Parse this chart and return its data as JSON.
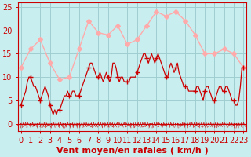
{
  "xlabel": "Vent moyen/en rafales ( km/h )",
  "bg_color": "#c8eef0",
  "grid_color": "#a0cdd0",
  "line_color_rafales": "#ffaaaa",
  "line_color_moyen": "#cc0000",
  "ylim": [
    0,
    26
  ],
  "xlim": [
    -0.3,
    23.3
  ],
  "yticks": [
    0,
    5,
    10,
    15,
    20,
    25
  ],
  "xticks": [
    0,
    1,
    2,
    3,
    4,
    5,
    6,
    7,
    8,
    9,
    10,
    11,
    12,
    13,
    14,
    15,
    16,
    17,
    18,
    19,
    20,
    21,
    22,
    23
  ],
  "font_color": "#cc0000",
  "font_size": 7,
  "rafales_x": [
    0,
    1,
    2,
    3,
    4,
    5,
    6,
    7,
    8,
    9,
    10,
    11,
    12,
    13,
    14,
    15,
    16,
    17,
    18,
    19,
    20,
    21,
    22,
    23
  ],
  "rafales_y": [
    12,
    16,
    18,
    13,
    9.5,
    10,
    16,
    22,
    19.5,
    19,
    21,
    17,
    18,
    21,
    24,
    23,
    24,
    22,
    19,
    15,
    15,
    16,
    15,
    12
  ],
  "moyen_x": [
    0,
    0.17,
    0.33,
    0.5,
    0.67,
    0.83,
    1,
    1.17,
    1.33,
    1.5,
    1.67,
    1.83,
    2,
    2.17,
    2.33,
    2.5,
    2.67,
    2.83,
    3,
    3.17,
    3.33,
    3.5,
    3.67,
    3.83,
    4,
    4.17,
    4.33,
    4.5,
    4.67,
    4.83,
    5,
    5.17,
    5.33,
    5.5,
    5.67,
    5.83,
    6,
    6.17,
    6.33,
    6.5,
    6.67,
    6.83,
    7,
    7.17,
    7.33,
    7.5,
    7.67,
    7.83,
    8,
    8.17,
    8.33,
    8.5,
    8.67,
    8.83,
    9,
    9.17,
    9.33,
    9.5,
    9.67,
    9.83,
    10,
    10.17,
    10.33,
    10.5,
    10.67,
    10.83,
    11,
    11.17,
    11.33,
    11.5,
    11.67,
    11.83,
    12,
    12.17,
    12.33,
    12.5,
    12.67,
    12.83,
    13,
    13.17,
    13.33,
    13.5,
    13.67,
    13.83,
    14,
    14.17,
    14.33,
    14.5,
    14.67,
    14.83,
    15,
    15.17,
    15.33,
    15.5,
    15.67,
    15.83,
    16,
    16.17,
    16.33,
    16.5,
    16.67,
    16.83,
    17,
    17.17,
    17.33,
    17.5,
    17.67,
    17.83,
    18,
    18.17,
    18.33,
    18.5,
    18.67,
    18.83,
    19,
    19.17,
    19.33,
    19.5,
    19.67,
    19.83,
    20,
    20.17,
    20.33,
    20.5,
    20.67,
    20.83,
    21,
    21.17,
    21.33,
    21.5,
    21.67,
    21.83,
    22,
    22.17,
    22.33,
    22.5,
    22.67,
    22.83,
    23
  ],
  "moyen_y": [
    4,
    5,
    6,
    7,
    9,
    10,
    10,
    9,
    8,
    8,
    7,
    6,
    5,
    6,
    7,
    8,
    7,
    6,
    4,
    3,
    2,
    3,
    2,
    3,
    3,
    4,
    5,
    6,
    6,
    7,
    6,
    6,
    7,
    7,
    6,
    6,
    6,
    7,
    8,
    9,
    10,
    11,
    12,
    13,
    13,
    12,
    11,
    10,
    10,
    11,
    10,
    9,
    10,
    11,
    10,
    9,
    10,
    13,
    13,
    12,
    10,
    9,
    10,
    10,
    9,
    9,
    9,
    9,
    10,
    10,
    10,
    10,
    11,
    12,
    13,
    14,
    15,
    15,
    14,
    13,
    14,
    15,
    14,
    13,
    14,
    15,
    14,
    13,
    12,
    11,
    10,
    10,
    12,
    13,
    12,
    11,
    12,
    13,
    11,
    10,
    9,
    8,
    8,
    8,
    7,
    7,
    7,
    7,
    7,
    8,
    8,
    7,
    6,
    5,
    7,
    8,
    8,
    7,
    6,
    5,
    5,
    6,
    7,
    8,
    8,
    7,
    7,
    8,
    8,
    7,
    6,
    5,
    5,
    4,
    4,
    5,
    8,
    12,
    12
  ],
  "moyen_marker_x": [
    0,
    1,
    2,
    3,
    4,
    5,
    6,
    7,
    8,
    9,
    10,
    11,
    12,
    13,
    14,
    15,
    16,
    17,
    18,
    19,
    20,
    21,
    22,
    23
  ],
  "moyen_marker_y": [
    4,
    10,
    5,
    4,
    3,
    6,
    6,
    12,
    10,
    10,
    10,
    9,
    11,
    14,
    14,
    10,
    12,
    8,
    7,
    7,
    5,
    7,
    5,
    12
  ]
}
